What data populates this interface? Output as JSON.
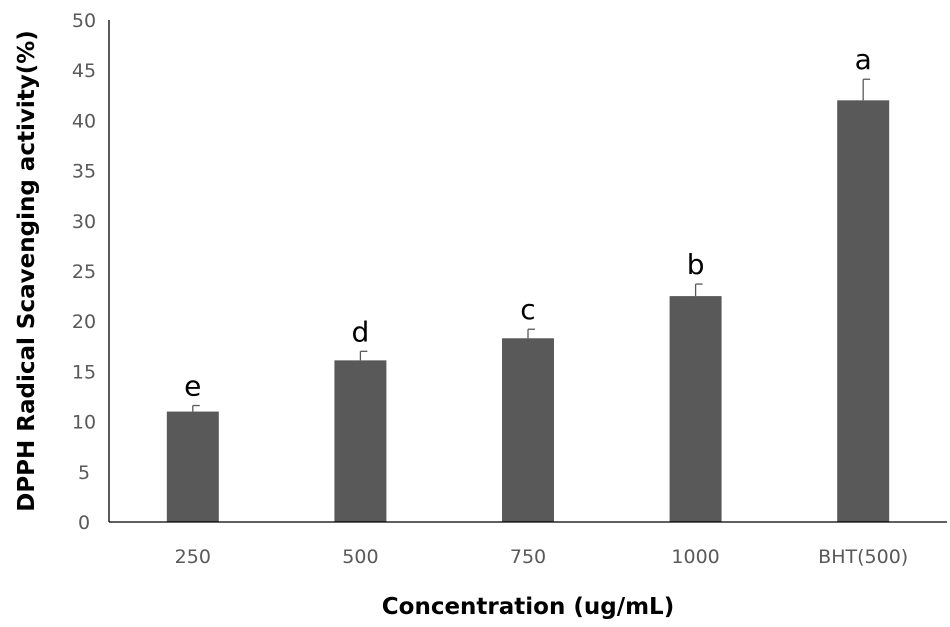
{
  "chart_data": {
    "type": "bar",
    "title": "",
    "xlabel": "Concentration (ug/mL)",
    "ylabel": "DPPH Radical Scavenging activity(%)",
    "categories": [
      "250",
      "500",
      "750",
      "1000",
      "BHT(500)"
    ],
    "values": [
      11.0,
      16.1,
      18.3,
      22.5,
      42.0
    ],
    "errors": [
      0.6,
      0.9,
      0.9,
      1.2,
      2.1
    ],
    "significance_labels": [
      "e",
      "d",
      "c",
      "b",
      "a"
    ],
    "ylim": [
      0,
      50
    ],
    "yticks": [
      "0",
      "5",
      "10",
      "15",
      "20",
      "25",
      "30",
      "35",
      "40",
      "45",
      "50"
    ],
    "grid": false,
    "legend": "none",
    "bar_color": "#595959",
    "axis_color": "#000000"
  }
}
